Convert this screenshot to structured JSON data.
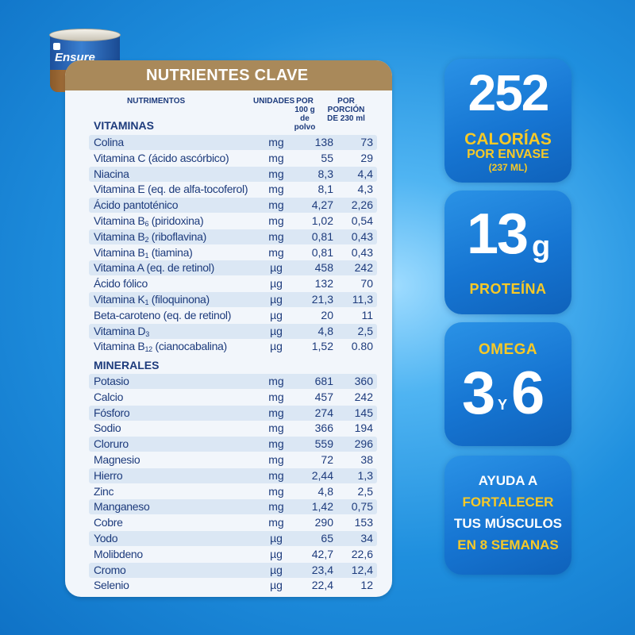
{
  "product": {
    "brand": "Ensure"
  },
  "panel": {
    "title": "NUTRIENTES CLAVE",
    "headers": {
      "nutrient": "NUTRIMENTOS",
      "units": "UNIDADES",
      "per100_l1": "POR",
      "per100_l2": "100 g",
      "per100_l3": "de polvo",
      "portion_l1": "POR PORCIÓN",
      "portion_l2": "DE 230 ml"
    },
    "vitamins_label": "VITAMINAS",
    "minerals_label": "MINERALES",
    "vitamins": [
      {
        "name": "Colina",
        "unit": "mg",
        "per100": "138",
        "portion": "73"
      },
      {
        "name": "Vitamina C (ácido ascórbico)",
        "unit": "mg",
        "per100": "55",
        "portion": "29"
      },
      {
        "name": "Niacina",
        "unit": "mg",
        "per100": "8,3",
        "portion": "4,4"
      },
      {
        "name": "Vitamina E (eq. de alfa-tocoferol)",
        "unit": "mg",
        "per100": "8,1",
        "portion": "4,3"
      },
      {
        "name": "Ácido pantoténico",
        "unit": "mg",
        "per100": "4,27",
        "portion": "2,26"
      },
      {
        "name": "Vitamina B6 (piridoxina)",
        "unit": "mg",
        "per100": "1,02",
        "portion": "0,54"
      },
      {
        "name": "Vitamina B2 (riboflavina)",
        "unit": "mg",
        "per100": "0,81",
        "portion": "0,43"
      },
      {
        "name": "Vitamina B1 (tiamina)",
        "unit": "mg",
        "per100": "0,81",
        "portion": "0,43"
      },
      {
        "name": "Vitamina A (eq. de retinol)",
        "unit": "µg",
        "per100": "458",
        "portion": "242"
      },
      {
        "name": "Ácido fólico",
        "unit": "µg",
        "per100": "132",
        "portion": "70"
      },
      {
        "name": "Vitamina K1 (filoquinona)",
        "unit": "µg",
        "per100": "21,3",
        "portion": "11,3"
      },
      {
        "name": "Beta-caroteno (eq. de retinol)",
        "unit": "µg",
        "per100": "20",
        "portion": "11"
      },
      {
        "name": "Vitamina D3",
        "unit": "µg",
        "per100": "4,8",
        "portion": "2,5"
      },
      {
        "name": "Vitamina B12 (cianocabalina)",
        "unit": "µg",
        "per100": "1,52",
        "portion": "0.80"
      }
    ],
    "minerals": [
      {
        "name": "Potasio",
        "unit": "mg",
        "per100": "681",
        "portion": "360"
      },
      {
        "name": "Calcio",
        "unit": "mg",
        "per100": "457",
        "portion": "242"
      },
      {
        "name": "Fósforo",
        "unit": "mg",
        "per100": "274",
        "portion": "145"
      },
      {
        "name": "Sodio",
        "unit": "mg",
        "per100": "366",
        "portion": "194"
      },
      {
        "name": "Cloruro",
        "unit": "mg",
        "per100": "559",
        "portion": "296"
      },
      {
        "name": "Magnesio",
        "unit": "mg",
        "per100": "72",
        "portion": "38"
      },
      {
        "name": "Hierro",
        "unit": "mg",
        "per100": "2,44",
        "portion": "1,3"
      },
      {
        "name": "Zinc",
        "unit": "mg",
        "per100": "4,8",
        "portion": "2,5"
      },
      {
        "name": "Manganeso",
        "unit": "mg",
        "per100": "1,42",
        "portion": "0,75"
      },
      {
        "name": "Cobre",
        "unit": "mg",
        "per100": "290",
        "portion": "153"
      },
      {
        "name": "Yodo",
        "unit": "µg",
        "per100": "65",
        "portion": "34"
      },
      {
        "name": "Molibdeno",
        "unit": "µg",
        "per100": "42,7",
        "portion": "22,6"
      },
      {
        "name": "Cromo",
        "unit": "µg",
        "per100": "23,4",
        "portion": "12,4"
      },
      {
        "name": "Selenio",
        "unit": "µg",
        "per100": "22,4",
        "portion": "12"
      }
    ]
  },
  "badges": {
    "calories": {
      "value": "252",
      "line1": "CALORÍAS",
      "line2": "POR ENVASE",
      "line3": "(237 ML)"
    },
    "protein": {
      "value": "13",
      "unit": "g",
      "label": "PROTEÍNA"
    },
    "omega": {
      "label": "OMEGA",
      "first": "3",
      "joiner": "Y",
      "second": "6"
    },
    "claim": {
      "line1": "AYUDA A",
      "line2": "FORTALECER",
      "line3": "TUS MÚSCULOS",
      "line4": "EN 8 SEMANAS"
    }
  },
  "colors": {
    "accent_yellow": "#f7c927",
    "header_gold": "#a9895a",
    "text_navy": "#1d3b7c",
    "badge_blue": "#1675d2"
  }
}
